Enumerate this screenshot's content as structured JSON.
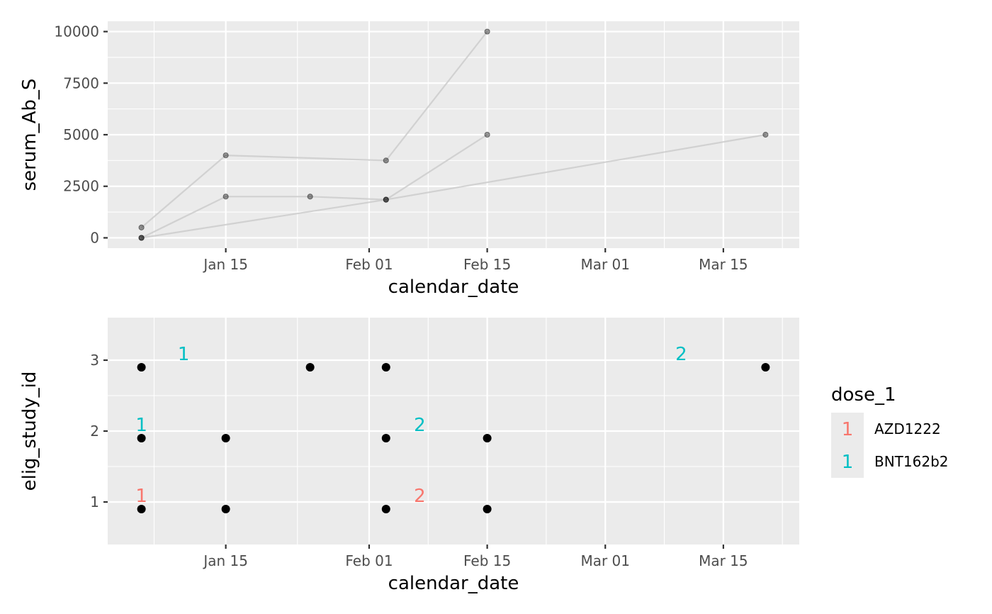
{
  "chart_data": [
    {
      "type": "line",
      "xlabel": "calendar_date",
      "ylabel": "serum_Ab_S",
      "x_ticks": [
        "Jan 15",
        "Feb 01",
        "Feb 15",
        "Mar 01",
        "Mar 15"
      ],
      "x_tick_dates": [
        "2021-01-15",
        "2021-02-01",
        "2021-02-15",
        "2021-03-01",
        "2021-03-15"
      ],
      "x_range": [
        "2021-01-01",
        "2021-03-24"
      ],
      "y_ticks": [
        0,
        2500,
        5000,
        7500,
        10000
      ],
      "ylim": [
        -500,
        10500
      ],
      "grid": true,
      "series": [
        {
          "points": [
            [
              "2021-01-05",
              0
            ],
            [
              "2021-01-15",
              2000
            ],
            [
              "2021-01-25",
              2000
            ],
            [
              "2021-02-03",
              1850
            ],
            [
              "2021-02-15",
              5000
            ]
          ]
        },
        {
          "points": [
            [
              "2021-01-05",
              500
            ],
            [
              "2021-01-15",
              4000
            ],
            [
              "2021-02-03",
              3750
            ],
            [
              "2021-02-15",
              10000
            ]
          ]
        },
        {
          "points": [
            [
              "2021-01-05",
              0
            ],
            [
              "2021-02-03",
              1850
            ],
            [
              "2021-03-20",
              5000
            ]
          ]
        }
      ]
    },
    {
      "type": "scatter",
      "xlabel": "calendar_date",
      "ylabel": "elig_study_id",
      "x_ticks": [
        "Jan 15",
        "Feb 01",
        "Feb 15",
        "Mar 01",
        "Mar 15"
      ],
      "x_tick_dates": [
        "2021-01-15",
        "2021-02-01",
        "2021-02-15",
        "2021-03-01",
        "2021-03-15"
      ],
      "x_range": [
        "2021-01-01",
        "2021-03-24"
      ],
      "y_ticks": [
        1,
        2,
        3
      ],
      "ylim": [
        0.4,
        3.6
      ],
      "grid": true,
      "points": [
        [
          "2021-01-05",
          0.9
        ],
        [
          "2021-01-15",
          0.9
        ],
        [
          "2021-02-03",
          0.9
        ],
        [
          "2021-02-15",
          0.9
        ],
        [
          "2021-01-05",
          1.9
        ],
        [
          "2021-01-15",
          1.9
        ],
        [
          "2021-02-03",
          1.9
        ],
        [
          "2021-02-15",
          1.9
        ],
        [
          "2021-01-05",
          2.9
        ],
        [
          "2021-01-25",
          2.9
        ],
        [
          "2021-02-03",
          2.9
        ],
        [
          "2021-03-20",
          2.9
        ]
      ],
      "labels": [
        {
          "x": "2021-01-05",
          "y": 1.1,
          "text": "1",
          "group": "AZD1222"
        },
        {
          "x": "2021-02-07",
          "y": 1.1,
          "text": "2",
          "group": "AZD1222"
        },
        {
          "x": "2021-01-05",
          "y": 2.1,
          "text": "1",
          "group": "BNT162b2"
        },
        {
          "x": "2021-02-07",
          "y": 2.1,
          "text": "2",
          "group": "BNT162b2"
        },
        {
          "x": "2021-01-10",
          "y": 3.1,
          "text": "1",
          "group": "BNT162b2"
        },
        {
          "x": "2021-03-10",
          "y": 3.1,
          "text": "2",
          "group": "BNT162b2"
        }
      ],
      "legend": {
        "title": "dose_1",
        "placement": "right",
        "entries": [
          {
            "key": "1",
            "label": "AZD1222",
            "color": "#F8766D"
          },
          {
            "key": "1",
            "label": "BNT162b2",
            "color": "#00BFC4"
          }
        ]
      }
    }
  ],
  "colors": {
    "panel": "#ebebeb",
    "grid": "#ffffff",
    "line": "#cccccc",
    "point": "#000000",
    "AZD1222": "#F8766D",
    "BNT162b2": "#00BFC4"
  }
}
